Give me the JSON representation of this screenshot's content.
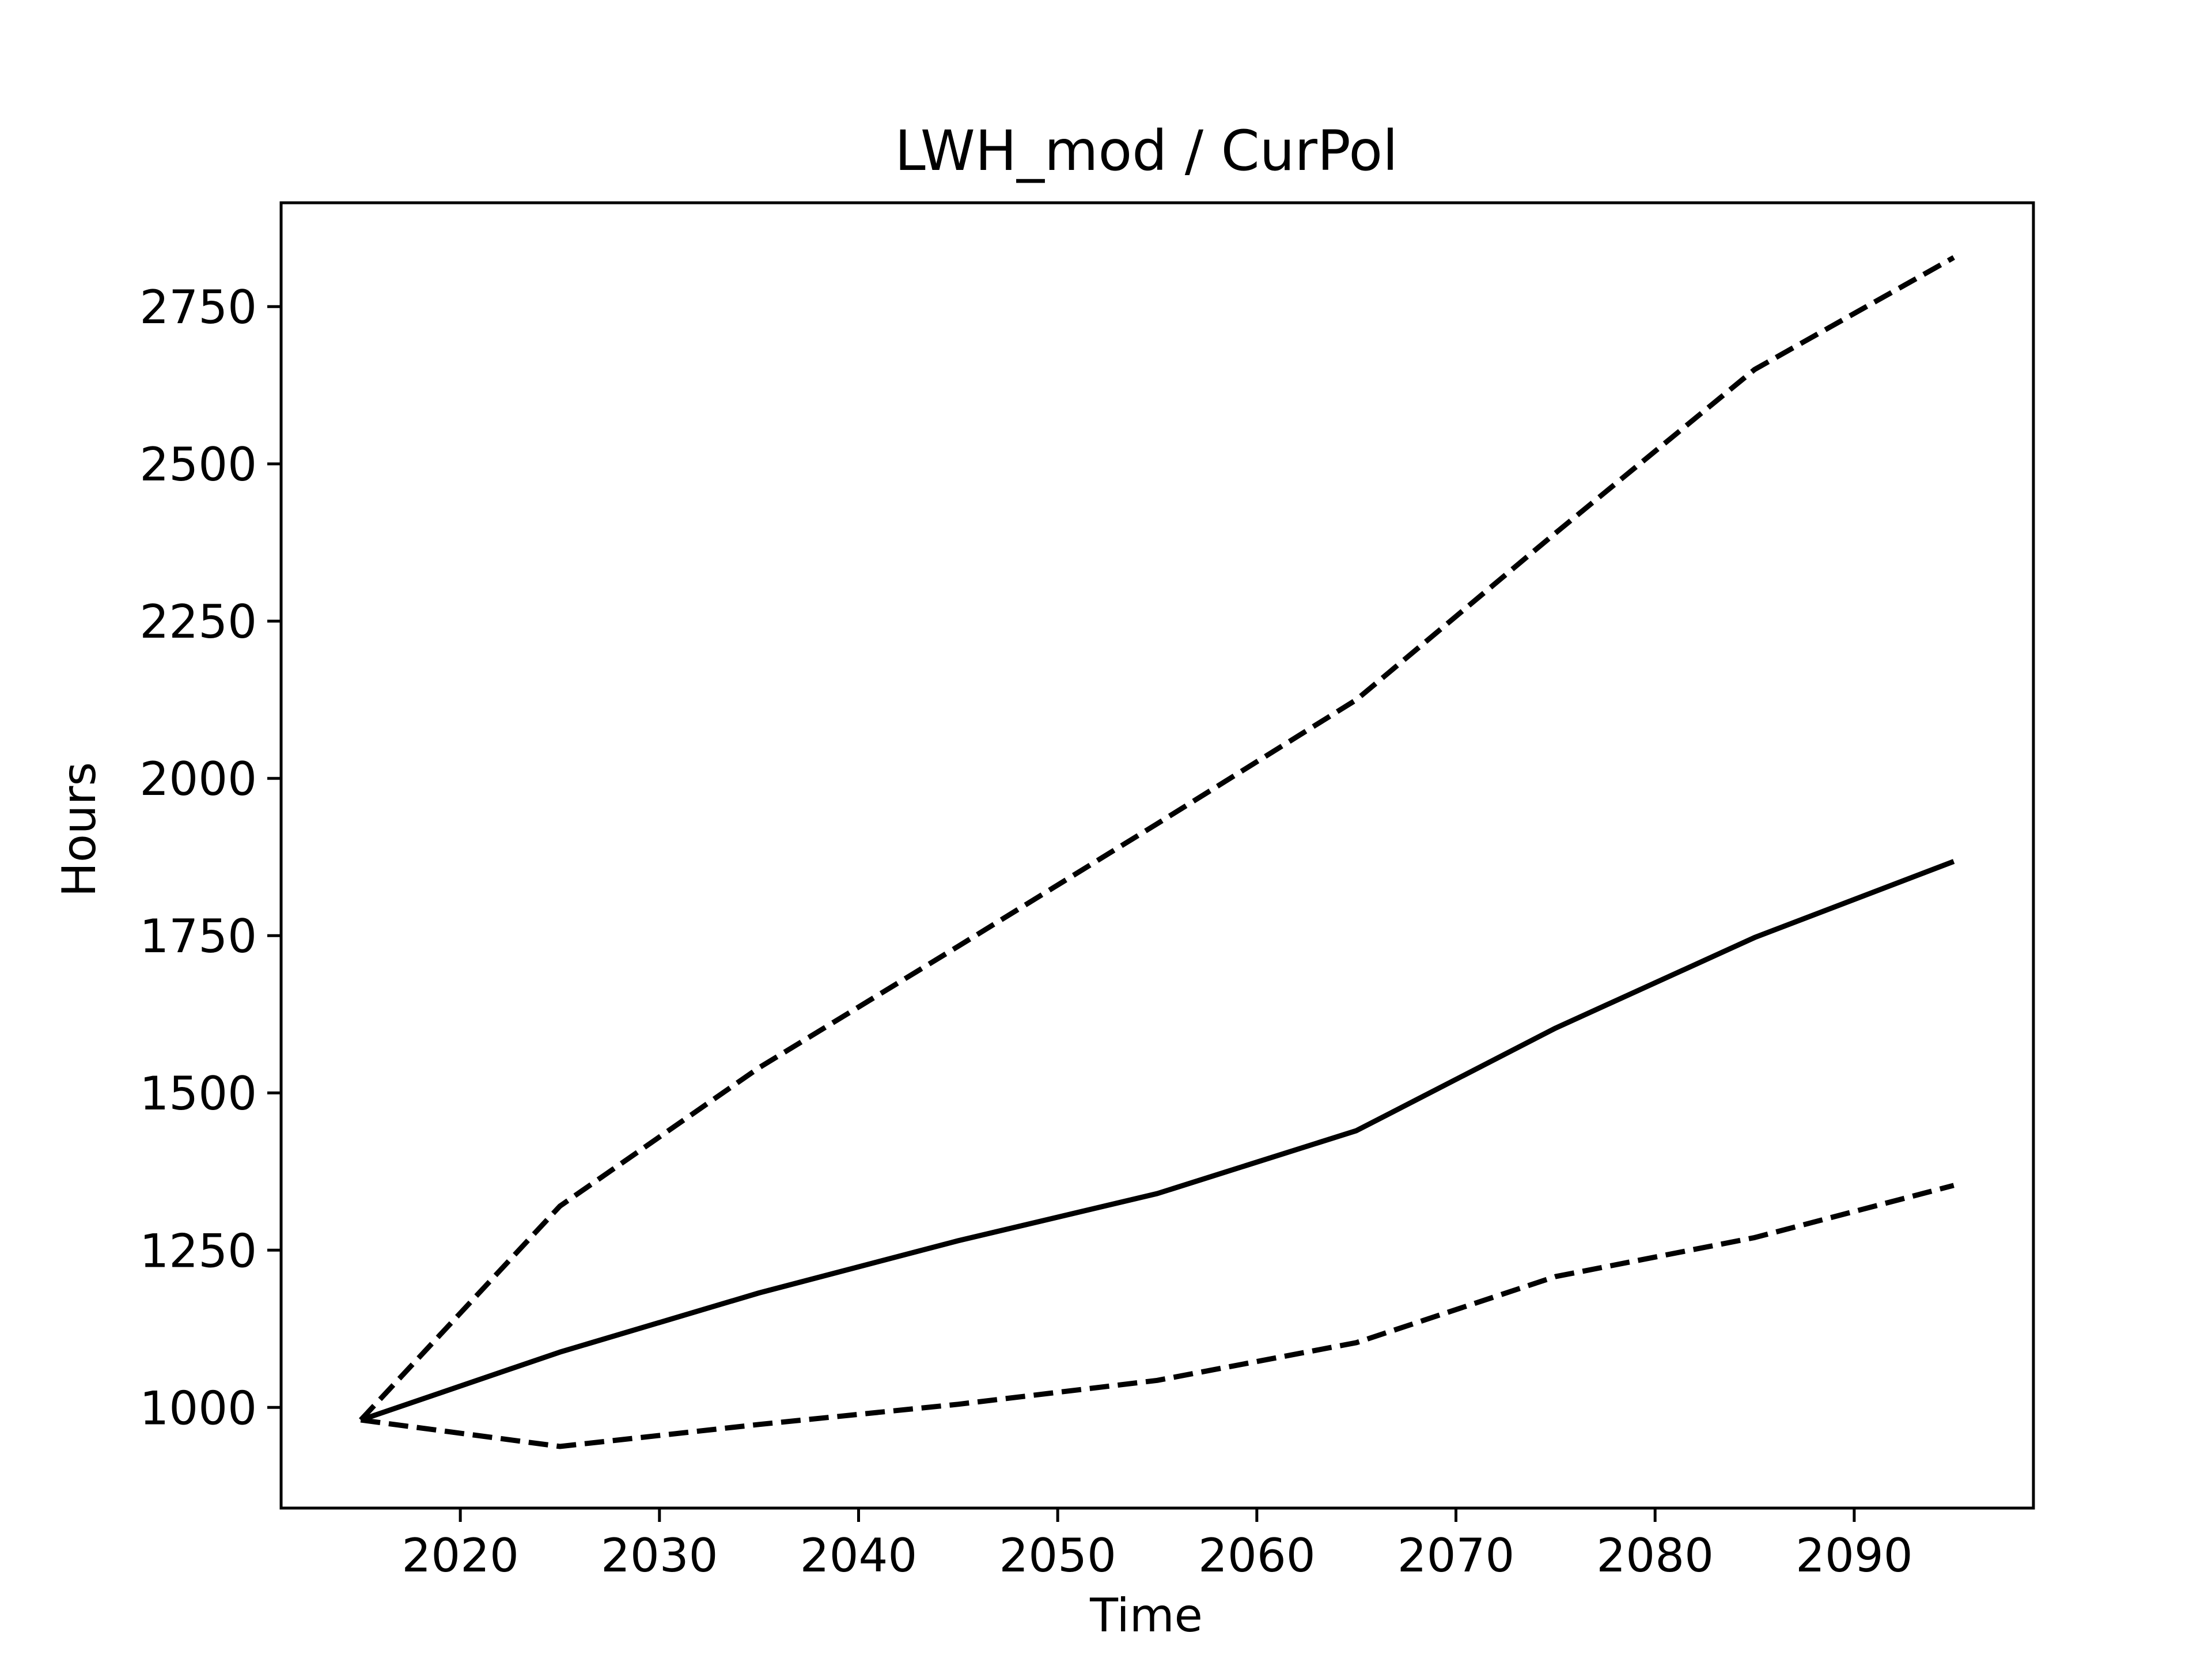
{
  "chart_data": {
    "type": "line",
    "title": "LWH_mod / CurPol",
    "xlabel": "Time",
    "ylabel": "Hours",
    "xlim": [
      2011,
      2099
    ],
    "ylim": [
      840,
      2915
    ],
    "x_ticks": [
      2020,
      2030,
      2040,
      2050,
      2060,
      2070,
      2080,
      2090
    ],
    "y_ticks": [
      1000,
      1250,
      1500,
      1750,
      2000,
      2250,
      2500,
      2750
    ],
    "grid": false,
    "x": [
      2015,
      2025,
      2035,
      2045,
      2055,
      2065,
      2075,
      2085,
      2095
    ],
    "series": [
      {
        "style": "solid",
        "values": [
          980,
          1088,
          1182,
          1265,
          1340,
          1440,
          1603,
          1747,
          1868
        ]
      },
      {
        "style": "dashed",
        "values": [
          980,
          1320,
          1540,
          1733,
          1928,
          2125,
          2390,
          2650,
          2828
        ]
      },
      {
        "style": "dashed",
        "values": [
          980,
          938,
          973,
          1005,
          1043,
          1103,
          1208,
          1270,
          1353
        ]
      }
    ],
    "line_color": "#000000"
  }
}
